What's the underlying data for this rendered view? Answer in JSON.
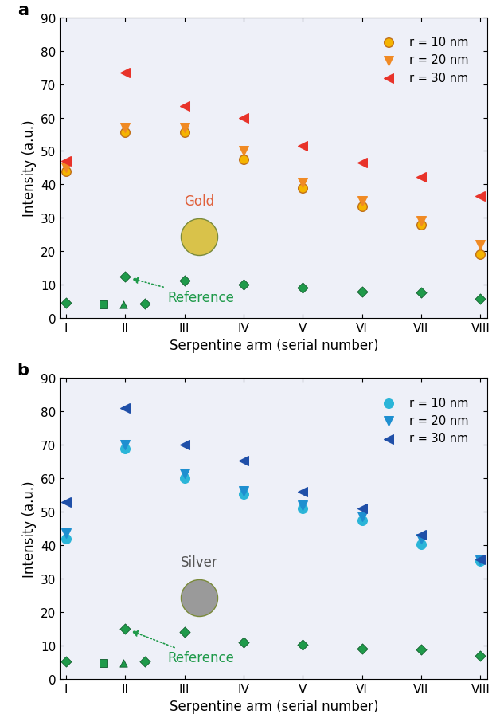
{
  "chart_data": [
    {
      "type": "scatter",
      "panel_label": "a",
      "inset_label": "Gold",
      "inset_color": "#e0603a",
      "x_label": "Serpentine arm (serial number)",
      "y_label": "Intensity (a.u.)",
      "xlim": [
        0.9,
        8.12
      ],
      "ylim": [
        0,
        90
      ],
      "xticks": [
        {
          "value": 1,
          "label": "I"
        },
        {
          "value": 2,
          "label": "II"
        },
        {
          "value": 3,
          "label": "III"
        },
        {
          "value": 4,
          "label": "IV"
        },
        {
          "value": 5,
          "label": "V"
        },
        {
          "value": 6,
          "label": "VI"
        },
        {
          "value": 7,
          "label": "VII"
        },
        {
          "value": 8,
          "label": "VIII"
        }
      ],
      "yticks": [
        0,
        10,
        20,
        30,
        40,
        50,
        60,
        70,
        80,
        90
      ],
      "legend": "upper right",
      "series": [
        {
          "name": "r = 10 nm",
          "color": "#f5b400",
          "marker": "circle",
          "x": [
            1,
            2,
            3,
            4,
            5,
            6,
            7,
            8
          ],
          "values": [
            44,
            55.5,
            55.5,
            47.5,
            39,
            33.5,
            28,
            19
          ]
        },
        {
          "name": "r = 20 nm",
          "color": "#f08a24",
          "marker": "triangle_down",
          "x": [
            1,
            2,
            3,
            4,
            5,
            6,
            7,
            8
          ],
          "values": [
            45,
            57,
            57,
            50,
            40.5,
            35,
            29,
            22
          ]
        },
        {
          "name": "r = 30 nm",
          "color": "#e8332a",
          "marker": "triangle_left",
          "x": [
            1,
            2,
            3,
            4,
            5,
            6,
            7,
            8
          ],
          "values": [
            47,
            73.5,
            63.5,
            60,
            51.5,
            46.5,
            42.3,
            36.5
          ]
        }
      ],
      "reference": {
        "text": "Reference",
        "color": "#1f9a4a",
        "points": [
          {
            "marker": "diamond",
            "x": [
              1,
              2,
              2.33,
              3,
              4,
              5,
              6,
              7,
              8
            ],
            "values": [
              4.5,
              12.3,
              4.3,
              11.3,
              10,
              9,
              8,
              7.6,
              5.7
            ]
          },
          {
            "marker": "square",
            "x": [
              1.64
            ],
            "values": [
              4
            ]
          },
          {
            "marker": "triangle_up",
            "x": [
              1.97
            ],
            "values": [
              4
            ]
          }
        ]
      }
    },
    {
      "type": "scatter",
      "panel_label": "b",
      "inset_label": "Silver",
      "inset_color": "#555555",
      "x_label": "Serpentine arm (serial number)",
      "y_label": "Intensity (a.u.)",
      "xlim": [
        0.9,
        8.12
      ],
      "ylim": [
        0,
        90
      ],
      "xticks": [
        {
          "value": 1,
          "label": "I"
        },
        {
          "value": 2,
          "label": "II"
        },
        {
          "value": 3,
          "label": "III"
        },
        {
          "value": 4,
          "label": "IV"
        },
        {
          "value": 5,
          "label": "V"
        },
        {
          "value": 6,
          "label": "VI"
        },
        {
          "value": 7,
          "label": "VII"
        },
        {
          "value": 8,
          "label": "VIII"
        }
      ],
      "yticks": [
        0,
        10,
        20,
        30,
        40,
        50,
        60,
        70,
        80,
        90
      ],
      "legend": "upper right",
      "series": [
        {
          "name": "r = 10 nm",
          "color": "#2bb5d8",
          "marker": "circle",
          "x": [
            1,
            2,
            3,
            4,
            5,
            6,
            7,
            8
          ],
          "values": [
            42,
            69,
            60,
            55.3,
            51,
            47.3,
            40.2,
            35.3
          ]
        },
        {
          "name": "r = 20 nm",
          "color": "#1e8fd0",
          "marker": "triangle_down",
          "x": [
            1,
            2,
            3,
            4,
            5,
            6,
            7,
            8
          ],
          "values": [
            43.5,
            70,
            61.5,
            56.3,
            52,
            48.5,
            42,
            35.5
          ]
        },
        {
          "name": "r = 30 nm",
          "color": "#1f4fa8",
          "marker": "triangle_left",
          "x": [
            1,
            2,
            3,
            4,
            5,
            6,
            7,
            8
          ],
          "values": [
            52.8,
            81,
            70,
            65.3,
            56,
            51,
            43,
            35.8
          ]
        }
      ],
      "reference": {
        "text": "Reference",
        "color": "#1f9a4a",
        "points": [
          {
            "marker": "diamond",
            "x": [
              1,
              2,
              2.33,
              3,
              4,
              5,
              6,
              7,
              8
            ],
            "values": [
              5.3,
              15,
              5.2,
              14,
              10.8,
              10.2,
              9.1,
              8.7,
              6.8
            ]
          },
          {
            "marker": "square",
            "x": [
              1.64
            ],
            "values": [
              4.7
            ]
          },
          {
            "marker": "triangle_up",
            "x": [
              1.97
            ],
            "values": [
              4.7
            ]
          }
        ]
      }
    }
  ]
}
